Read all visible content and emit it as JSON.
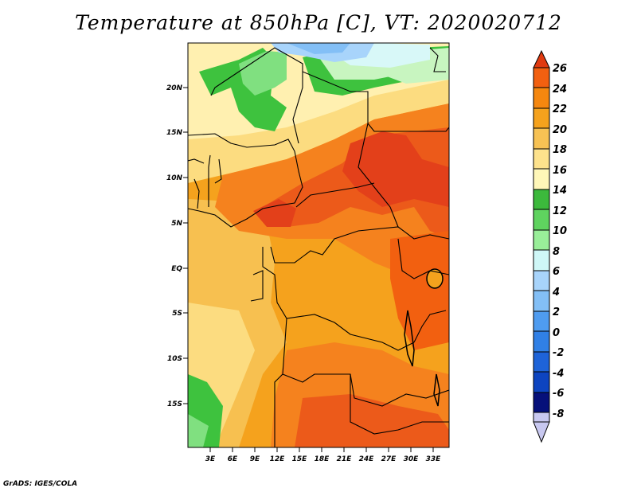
{
  "title": "Temperature at 850hPa [C], VT: 2020020712",
  "credit": "GrADS: IGES/COLA",
  "axes": {
    "lat_labels": [
      "20N",
      "15N",
      "10N",
      "5N",
      "EQ",
      "5S",
      "10S",
      "15S"
    ],
    "lon_labels": [
      "3E",
      "6E",
      "9E",
      "12E",
      "15E",
      "18E",
      "21E",
      "24E",
      "27E",
      "30E",
      "33E"
    ]
  },
  "colorbar": {
    "labels": [
      "26",
      "24",
      "22",
      "20",
      "18",
      "16",
      "14",
      "12",
      "10",
      "8",
      "6",
      "4",
      "2",
      "0",
      "-2",
      "-4",
      "-6",
      "-8"
    ],
    "colors_top_to_bottom": [
      "#e03a10",
      "#f26010",
      "#f5870f",
      "#f5a21d",
      "#f7c254",
      "#fde28c",
      "#fff7b8",
      "#3cb93c",
      "#5fd35f",
      "#99ee99",
      "#cff7f7",
      "#a8d4fb",
      "#83bff6",
      "#4f9cf0",
      "#3080e6",
      "#1e63d8",
      "#0d44c0",
      "#06107a",
      "#c8c8f0"
    ]
  },
  "map_regions": {
    "colors": {
      "deep_red": "#e3401a",
      "red": "#ec5a1a",
      "orange": "#f5821e",
      "orange_light": "#f7a02a",
      "yellow_orange": "#f7c050",
      "yellow": "#fcdc80",
      "pale_yellow": "#fff0b0",
      "green": "#3ec23e",
      "light_green": "#80e080",
      "pale_green": "#c8f5c0",
      "cyan": "#d8f8f8",
      "light_blue": "#a8d4fb",
      "blue": "#83bff6"
    }
  }
}
